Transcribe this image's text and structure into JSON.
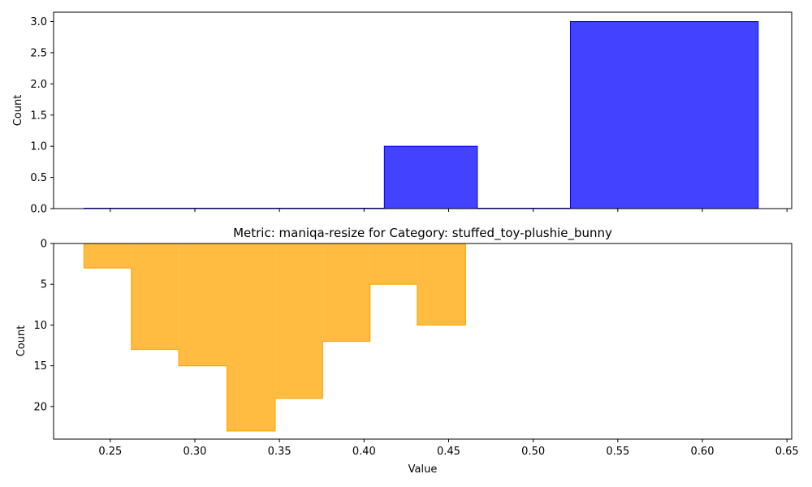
{
  "chart_data": [
    {
      "type": "bar",
      "title": "",
      "xlabel": "",
      "ylabel": "Count",
      "xlim": [
        0.2165,
        0.6528
      ],
      "ylim": [
        0,
        3.15
      ],
      "yticks": [
        "0.0",
        "0.5",
        "1.0",
        "1.5",
        "2.0",
        "2.5",
        "3.0"
      ],
      "ytick_values": [
        0,
        0.5,
        1,
        1.5,
        2,
        2.5,
        3
      ],
      "color": "#0000ff",
      "bins": [
        {
          "x0": 0.2345,
          "x1": 0.412,
          "value": 0
        },
        {
          "x0": 0.412,
          "x1": 0.467,
          "value": 1
        },
        {
          "x0": 0.467,
          "x1": 0.522,
          "value": 0
        },
        {
          "x0": 0.522,
          "x1": 0.633,
          "value": 3
        }
      ]
    },
    {
      "type": "bar",
      "title": "Metric: maniqa-resize for Category: stuffed_toy-plushie_bunny",
      "xlabel": "Value",
      "ylabel": "Count",
      "xlim": [
        0.2165,
        0.6528
      ],
      "ylim": [
        0,
        24
      ],
      "y_inverted": true,
      "yticks": [
        "0",
        "5",
        "10",
        "15",
        "20"
      ],
      "ytick_values": [
        0,
        5,
        10,
        15,
        20
      ],
      "xticks": [
        "0.25",
        "0.30",
        "0.35",
        "0.40",
        "0.45",
        "0.50",
        "0.55",
        "0.60",
        "0.65"
      ],
      "xtick_values": [
        0.25,
        0.3,
        0.35,
        0.4,
        0.45,
        0.5,
        0.55,
        0.6,
        0.65
      ],
      "color": "#ffa500",
      "bins": [
        {
          "x0": 0.2345,
          "x1": 0.2625,
          "value": 3
        },
        {
          "x0": 0.2625,
          "x1": 0.2905,
          "value": 13
        },
        {
          "x0": 0.2905,
          "x1": 0.319,
          "value": 15
        },
        {
          "x0": 0.319,
          "x1": 0.3475,
          "value": 23
        },
        {
          "x0": 0.3475,
          "x1": 0.3755,
          "value": 19
        },
        {
          "x0": 0.3755,
          "x1": 0.4035,
          "value": 12
        },
        {
          "x0": 0.4035,
          "x1": 0.4315,
          "value": 5
        },
        {
          "x0": 0.4315,
          "x1": 0.46,
          "value": 10
        }
      ]
    }
  ]
}
